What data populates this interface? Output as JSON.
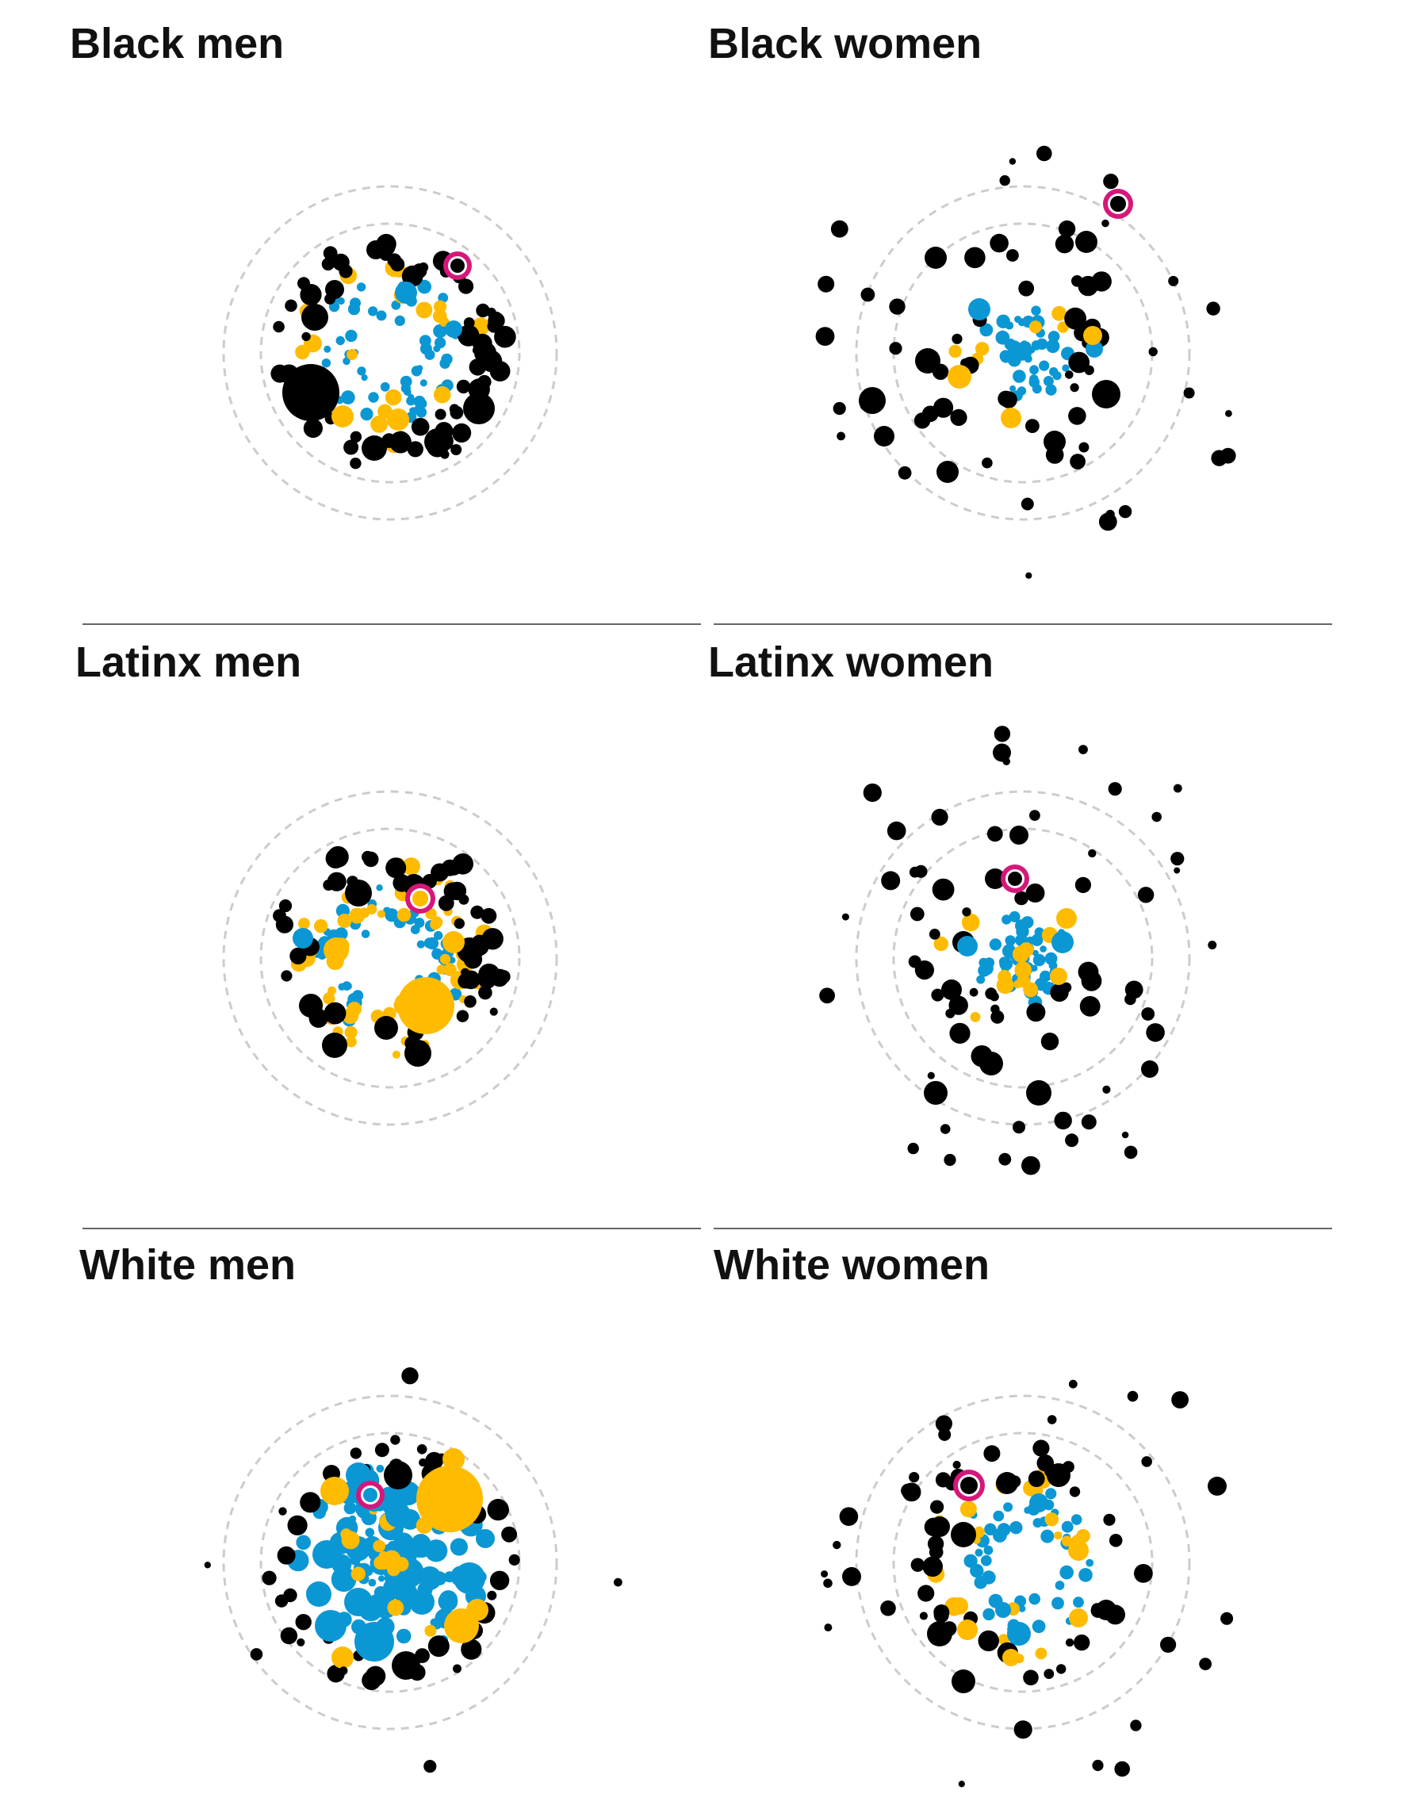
{
  "panels": [
    {
      "title": "Black men"
    },
    {
      "title": "Black women"
    },
    {
      "title": "Latinx men"
    },
    {
      "title": "Latinx women"
    },
    {
      "title": "White men"
    },
    {
      "title": "White women"
    }
  ],
  "colors": {
    "black_group": "#000000",
    "gold_group": "#ffbb00",
    "blue_group": "#0b97d4",
    "highlight_ring": "#d6177a",
    "ring_line": "#cccccc",
    "divider": "#666666"
  }
}
